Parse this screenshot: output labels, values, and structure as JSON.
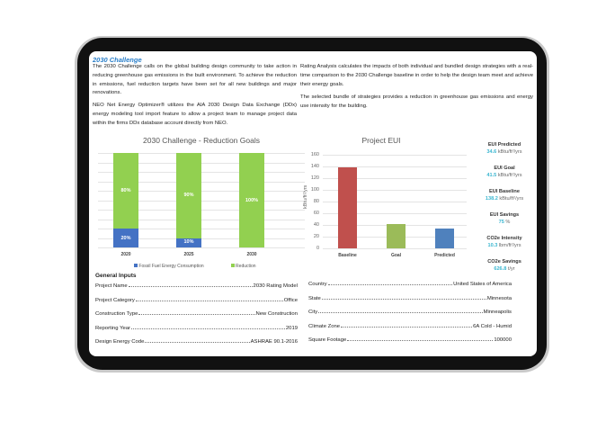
{
  "heading": "2030 Challenge",
  "paragraphs": {
    "left1": "The 2030 Challenge calls on the global building design community to take action in reducing greenhouse gas emissions in the built environment. To achieve the reduction in emissions, fuel reduction targets have been set for all new buildings and major renovations.",
    "left2": "NEO Net Energy Optimizer® utilizes the AIA 2030 Design Data Exchange (DDx) energy modeling tool import feature to allow a project team to manage project data within the firms DDx database account directly from NEO.",
    "right1": "Rating Analysis calculates the impacts of both individual and bundled design strategies with a real-time comparison to the 2030 Challenge baseline in order to help the design team meet and achieve their energy goals.",
    "right2": "The selected bundle of strategies provides a reduction in greenhouse gas emissions and energy use intensity for the building."
  },
  "chart_data": [
    {
      "type": "bar",
      "stacked": true,
      "title": "2030 Challenge - Reduction Goals",
      "categories": [
        "2020",
        "2025",
        "2030"
      ],
      "series": [
        {
          "name": "Fossil Fuel Energy Consumption",
          "values": [
            20,
            10,
            0
          ],
          "labels": [
            "20%",
            "10%",
            "0%"
          ],
          "color": "#4472c4"
        },
        {
          "name": "Reduction",
          "values": [
            80,
            90,
            100
          ],
          "labels": [
            "80%",
            "90%",
            "100%"
          ],
          "color": "#92d050"
        }
      ],
      "ylim": [
        0,
        100
      ],
      "grid": true,
      "legend": "bottom"
    },
    {
      "type": "bar",
      "title": "Project EUI",
      "ylabel": "kBtu/ft²/yrs",
      "categories": [
        "Baseline",
        "Goal",
        "Predicted"
      ],
      "values": [
        138.2,
        41.5,
        34.6
      ],
      "colors": [
        "#c0504d",
        "#9bbb59",
        "#4f81bd"
      ],
      "ylim": [
        0,
        160
      ],
      "yticks": [
        "0",
        "20",
        "40",
        "60",
        "80",
        "100",
        "120",
        "140",
        "160"
      ],
      "grid": true
    }
  ],
  "stats": [
    {
      "label": "EUI Predicted",
      "value": "34.6",
      "unit": "kBtu/ft²/yrs"
    },
    {
      "label": "EUI Goal",
      "value": "41.5",
      "unit": "kBtu/ft²/yrs"
    },
    {
      "label": "EUI Baseline",
      "value": "138.2",
      "unit": "kBtu/ft²/yrs"
    },
    {
      "label": "EUI Savings",
      "value": "75",
      "unit": "%"
    },
    {
      "label": "CO2e Intensity",
      "value": "10.3",
      "unit": "lbm/ft²/yrs"
    },
    {
      "label": "CO2e Savings",
      "value": "626.8",
      "unit": "t/yr"
    }
  ],
  "general_inputs": {
    "title": "General Inputs",
    "left": [
      {
        "label": "Project Name",
        "value": "2030 Rating Model"
      },
      {
        "label": "Project Category",
        "value": "Office"
      },
      {
        "label": "Construction Type",
        "value": "New Construction"
      },
      {
        "label": "Reporting Year",
        "value": "2019"
      },
      {
        "label": "Design Energy Code",
        "value": "ASHRAE 90.1-2016"
      }
    ],
    "right": [
      {
        "label": "Country",
        "value": "United States of America"
      },
      {
        "label": "State",
        "value": "Minnesota"
      },
      {
        "label": "City",
        "value": "Minneapolis"
      },
      {
        "label": "Climate Zone",
        "value": "6A Cold - Humid"
      },
      {
        "label": "Square Footage",
        "value": "100000"
      }
    ]
  }
}
